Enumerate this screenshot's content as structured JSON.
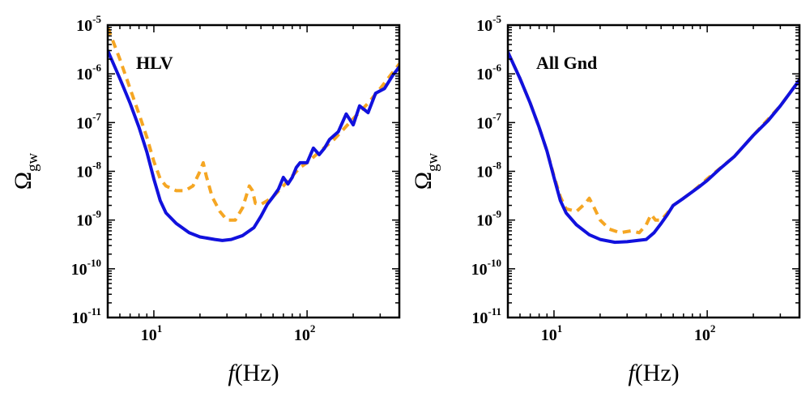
{
  "chart_data": [
    {
      "type": "line",
      "panel_label": "HLV",
      "xscale": "log",
      "yscale": "log",
      "xlim": [
        5,
        400
      ],
      "ylim": [
        1e-11,
        1e-05
      ],
      "xlabel": {
        "var": "f",
        "units": "(Hz)"
      },
      "ylabel": {
        "base": "Ω",
        "sub": "gw"
      },
      "x_ticks": [
        {
          "base": "10",
          "exp": "1",
          "value": 10
        },
        {
          "base": "10",
          "exp": "2",
          "value": 100
        }
      ],
      "y_ticks": [
        {
          "base": "10",
          "exp": "-5",
          "value": 1e-05
        },
        {
          "base": "10",
          "exp": "-6",
          "value": 1e-06
        },
        {
          "base": "10",
          "exp": "-7",
          "value": 1e-07
        },
        {
          "base": "10",
          "exp": "-8",
          "value": 1e-08
        },
        {
          "base": "10",
          "exp": "-9",
          "value": 1e-09
        },
        {
          "base": "10",
          "exp": "-10",
          "value": 1e-10
        },
        {
          "base": "10",
          "exp": "-11",
          "value": 1e-11
        }
      ],
      "series": [
        {
          "name": "solid",
          "style": "solid",
          "color": "#1111dd",
          "x": [
            5,
            6,
            7,
            8,
            9,
            10,
            11,
            12,
            14,
            17,
            20,
            25,
            28,
            32,
            38,
            45,
            50,
            55,
            60,
            65,
            70,
            75,
            80,
            85,
            90,
            100,
            110,
            120,
            130,
            140,
            160,
            180,
            200,
            220,
            250,
            280,
            320,
            360,
            400
          ],
          "y": [
            3e-06,
            8e-07,
            2.5e-07,
            8e-08,
            2.5e-08,
            7e-09,
            2.5e-09,
            1.4e-09,
            8.5e-10,
            5.5e-10,
            4.5e-10,
            4e-10,
            3.8e-10,
            4e-10,
            4.8e-10,
            7e-10,
            1.2e-09,
            2.1e-09,
            3e-09,
            4.3e-09,
            7.5e-09,
            5.5e-09,
            7.5e-09,
            1.2e-08,
            1.5e-08,
            1.5e-08,
            3e-08,
            2.2e-08,
            3e-08,
            4.5e-08,
            6.5e-08,
            1.5e-07,
            9e-08,
            2.2e-07,
            1.6e-07,
            4e-07,
            5e-07,
            9e-07,
            1.4e-06
          ]
        },
        {
          "name": "dashed",
          "style": "dashed",
          "color": "#f5a623",
          "x": [
            5,
            6,
            7,
            8,
            9,
            10,
            11,
            12,
            14,
            16,
            18,
            20,
            21,
            22,
            24,
            27,
            30,
            34,
            38,
            42,
            44,
            46,
            50,
            55,
            60,
            70,
            80,
            90,
            100,
            120,
            150,
            200,
            250,
            300,
            400
          ],
          "y": [
            9e-06,
            2e-06,
            5e-07,
            1.5e-07,
            5e-08,
            1.6e-08,
            7e-09,
            5e-09,
            4e-09,
            4e-09,
            5e-09,
            1e-08,
            1.5e-08,
            8e-09,
            3e-09,
            1.5e-09,
            1e-09,
            1e-09,
            1.8e-09,
            5e-09,
            4e-09,
            2.2e-09,
            2.1e-09,
            2.5e-09,
            3e-09,
            5e-09,
            8e-09,
            1.2e-08,
            1.5e-08,
            2.5e-08,
            4.5e-08,
            1.2e-07,
            2.5e-07,
            5e-07,
            1.6e-06
          ]
        }
      ]
    },
    {
      "type": "line",
      "panel_label": "All Gnd",
      "xscale": "log",
      "yscale": "log",
      "xlim": [
        5,
        400
      ],
      "ylim": [
        1e-11,
        1e-05
      ],
      "xlabel": {
        "var": "f",
        "units": "(Hz)"
      },
      "ylabel": {
        "base": "Ω",
        "sub": "gw"
      },
      "x_ticks": [
        {
          "base": "10",
          "exp": "1",
          "value": 10
        },
        {
          "base": "10",
          "exp": "2",
          "value": 100
        }
      ],
      "y_ticks": [
        {
          "base": "10",
          "exp": "-5",
          "value": 1e-05
        },
        {
          "base": "10",
          "exp": "-6",
          "value": 1e-06
        },
        {
          "base": "10",
          "exp": "-7",
          "value": 1e-07
        },
        {
          "base": "10",
          "exp": "-8",
          "value": 1e-08
        },
        {
          "base": "10",
          "exp": "-9",
          "value": 1e-09
        },
        {
          "base": "10",
          "exp": "-10",
          "value": 1e-10
        },
        {
          "base": "10",
          "exp": "-11",
          "value": 1e-11
        }
      ],
      "series": [
        {
          "name": "solid",
          "style": "solid",
          "color": "#1111dd",
          "x": [
            5,
            6,
            7,
            8,
            9,
            10,
            11,
            12,
            14,
            17,
            20,
            25,
            30,
            35,
            40,
            45,
            50,
            55,
            60,
            70,
            80,
            90,
            100,
            120,
            150,
            200,
            250,
            300,
            400
          ],
          "y": [
            2.8e-06,
            8e-07,
            2.5e-07,
            8e-08,
            2.6e-08,
            7.5e-09,
            2.5e-09,
            1.4e-09,
            8e-10,
            5e-10,
            4e-10,
            3.5e-10,
            3.6e-10,
            3.8e-10,
            4e-10,
            5.5e-10,
            8.5e-10,
            1.3e-09,
            2e-09,
            2.8e-09,
            3.8e-09,
            5e-09,
            6.5e-09,
            1.1e-08,
            2e-08,
            5.5e-08,
            1.1e-07,
            2.2e-07,
            7.5e-07
          ]
        },
        {
          "name": "dashed",
          "style": "dashed",
          "color": "#f5a623",
          "x": [
            5,
            6,
            7,
            8,
            9,
            10,
            11,
            12,
            14,
            16,
            17,
            18,
            20,
            23,
            27,
            32,
            36,
            40,
            43,
            46,
            50,
            55,
            60,
            70,
            80,
            100,
            150,
            200,
            300,
            400
          ],
          "y": [
            2.8e-06,
            8e-07,
            2.5e-07,
            8e-08,
            2.6e-08,
            8e-09,
            3e-09,
            1.7e-09,
            1.5e-09,
            2.2e-09,
            2.8e-09,
            2e-09,
            1e-09,
            6.5e-10,
            5.5e-10,
            6e-10,
            5.5e-10,
            8e-10,
            1.3e-09,
            1e-09,
            1e-09,
            1.4e-09,
            2e-09,
            2.8e-09,
            3.8e-09,
            7e-09,
            2e-08,
            5.5e-08,
            2.2e-07,
            7.5e-07
          ]
        }
      ]
    }
  ]
}
